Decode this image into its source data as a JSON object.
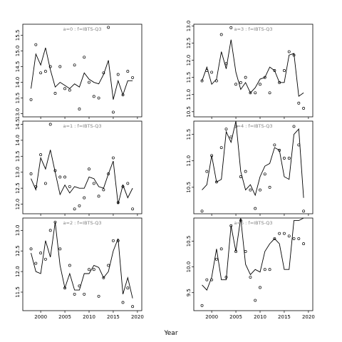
{
  "figure": {
    "xlabel": "Year"
  },
  "chart_data": [
    {
      "type": "line",
      "panel_label": "a=0  :  f=IBTS-Q3",
      "xlim": [
        1996.3,
        2020.9
      ],
      "ylim": [
        12.9,
        15.85
      ],
      "yticks": [
        13.0,
        13.5,
        14.0,
        14.5,
        15.0,
        15.5
      ],
      "xticks": [
        2000,
        2005,
        2010,
        2015,
        2020
      ],
      "show_xticklabels": false,
      "line": {
        "x": [
          1998,
          1999,
          2000,
          2001,
          2002,
          2003,
          2004,
          2005,
          2006,
          2007,
          2008,
          2009,
          2010,
          2011,
          2012,
          2013,
          2014,
          2015,
          2016,
          2017,
          2018,
          2019
        ],
        "y": [
          13.8,
          14.9,
          14.55,
          15.1,
          14.4,
          13.85,
          14.0,
          13.9,
          13.8,
          13.95,
          13.85,
          14.3,
          14.1,
          14.0,
          13.95,
          14.25,
          14.7,
          13.45,
          14.05,
          13.6,
          14.05,
          14.05
        ]
      },
      "points": {
        "x": [
          1998,
          1999,
          2000,
          2001,
          2002,
          2003,
          2004,
          2005,
          2006,
          2007,
          2008,
          2009,
          2010,
          2011,
          2012,
          2013,
          2014,
          2015,
          2016,
          2017,
          2018,
          2019
        ],
        "y": [
          13.45,
          15.2,
          14.3,
          14.35,
          14.5,
          13.65,
          14.5,
          13.8,
          13.75,
          14.55,
          13.15,
          14.8,
          14.0,
          13.55,
          13.5,
          14.3,
          15.75,
          13.05,
          14.25,
          13.6,
          14.35,
          14.15
        ]
      }
    },
    {
      "type": "line",
      "panel_label": "a=3  :  f=IBTS-Q3",
      "xlim": [
        1996.3,
        2020.9
      ],
      "ylim": [
        10.35,
        13.05
      ],
      "yticks": [
        10.5,
        11.0,
        11.5,
        12.0,
        12.5,
        13.0
      ],
      "xticks": [
        2000,
        2005,
        2010,
        2015,
        2020
      ],
      "show_xticklabels": false,
      "line": {
        "x": [
          1998,
          1999,
          2000,
          2001,
          2002,
          2003,
          2004,
          2005,
          2006,
          2007,
          2008,
          2009,
          2010,
          2011,
          2012,
          2013,
          2014,
          2015,
          2016,
          2017,
          2018,
          2019
        ],
        "y": [
          11.4,
          11.8,
          11.3,
          11.45,
          12.25,
          11.75,
          12.6,
          11.65,
          11.15,
          11.35,
          11.05,
          11.2,
          11.45,
          11.5,
          11.8,
          11.7,
          11.35,
          11.35,
          12.15,
          12.2,
          10.95,
          11.05
        ]
      },
      "points": {
        "x": [
          1998,
          1999,
          2000,
          2001,
          2002,
          2003,
          2004,
          2005,
          2006,
          2007,
          2008,
          2009,
          2010,
          2011,
          2012,
          2013,
          2014,
          2015,
          2016,
          2017,
          2018,
          2019
        ],
        "y": [
          11.4,
          11.7,
          11.65,
          11.4,
          12.75,
          11.9,
          12.95,
          11.3,
          11.35,
          11.5,
          11.05,
          11.05,
          11.3,
          11.5,
          11.05,
          11.7,
          11.35,
          11.7,
          12.25,
          12.15,
          10.75,
          10.6
        ]
      }
    },
    {
      "type": "line",
      "panel_label": "a=1  :  f=IBTS-Q3",
      "xlim": [
        1996.3,
        2020.9
      ],
      "ylim": [
        11.7,
        14.6
      ],
      "yticks": [
        12.0,
        12.5,
        13.0,
        13.5,
        14.0,
        14.5
      ],
      "xticks": [
        2000,
        2005,
        2010,
        2015,
        2020
      ],
      "show_xticklabels": false,
      "line": {
        "x": [
          1998,
          1999,
          2000,
          2001,
          2002,
          2003,
          2004,
          2005,
          2006,
          2007,
          2008,
          2009,
          2010,
          2011,
          2012,
          2013,
          2014,
          2015,
          2016,
          2017,
          2018,
          2019
        ],
        "y": [
          12.8,
          12.45,
          13.45,
          13.1,
          13.7,
          13.0,
          12.3,
          12.6,
          12.35,
          12.55,
          12.5,
          12.5,
          12.85,
          12.8,
          12.55,
          12.5,
          12.95,
          13.35,
          12.0,
          12.6,
          12.2,
          12.5
        ]
      },
      "points": {
        "x": [
          1998,
          1999,
          2000,
          2001,
          2002,
          2003,
          2004,
          2005,
          2006,
          2007,
          2008,
          2009,
          2010,
          2011,
          2012,
          2013,
          2014,
          2015,
          2016,
          2017,
          2018,
          2019
        ],
        "y": [
          12.95,
          12.55,
          13.55,
          12.65,
          14.5,
          13.05,
          12.85,
          12.85,
          12.55,
          11.85,
          11.95,
          12.2,
          13.1,
          12.65,
          12.25,
          12.45,
          12.95,
          13.45,
          12.05,
          12.55,
          12.65,
          11.85
        ]
      }
    },
    {
      "type": "line",
      "panel_label": "a=4  :  f=IBTS-Q3",
      "xlim": [
        1996.3,
        2020.9
      ],
      "ylim": [
        10.0,
        11.75
      ],
      "yticks": [
        10.5,
        11.0,
        11.5
      ],
      "xticks": [
        2000,
        2005,
        2010,
        2015,
        2020
      ],
      "show_xticklabels": false,
      "line": {
        "x": [
          1998,
          1999,
          2000,
          2001,
          2002,
          2003,
          2004,
          2005,
          2006,
          2007,
          2008,
          2009,
          2010,
          2011,
          2012,
          2013,
          2014,
          2015,
          2016,
          2017,
          2018,
          2019
        ],
        "y": [
          10.45,
          10.55,
          11.1,
          10.6,
          10.65,
          11.55,
          11.35,
          11.75,
          10.8,
          10.45,
          10.55,
          10.35,
          10.7,
          10.9,
          10.95,
          11.25,
          11.2,
          10.7,
          10.65,
          11.5,
          11.6,
          10.3
        ]
      },
      "points": {
        "x": [
          1998,
          1999,
          2000,
          2001,
          2002,
          2003,
          2004,
          2005,
          2006,
          2007,
          2008,
          2009,
          2010,
          2011,
          2012,
          2013,
          2014,
          2015,
          2016,
          2017,
          2018,
          2019
        ],
        "y": [
          10.05,
          10.8,
          11.1,
          10.6,
          11.25,
          11.6,
          11.45,
          11.65,
          10.7,
          10.8,
          10.45,
          10.1,
          10.45,
          10.75,
          10.5,
          11.3,
          11.2,
          11.05,
          11.05,
          11.65,
          11.3,
          10.05
        ]
      }
    },
    {
      "type": "line",
      "panel_label": "a=2  :  f=IBTS-Q3",
      "xlim": [
        1996.3,
        2020.9
      ],
      "ylim": [
        11.05,
        13.3
      ],
      "yticks": [
        11.5,
        12.0,
        12.5,
        13.0
      ],
      "xticks": [
        2000,
        2005,
        2010,
        2015,
        2020
      ],
      "xticklabels": [
        "2000",
        "2005",
        "2010",
        "2015",
        "2020"
      ],
      "show_xticklabels": true,
      "line": {
        "x": [
          1998,
          1999,
          2000,
          2001,
          2002,
          2003,
          2004,
          2005,
          2006,
          2007,
          2008,
          2009,
          2010,
          2011,
          2012,
          2013,
          2014,
          2015,
          2016,
          2017,
          2018,
          2019
        ],
        "y": [
          12.45,
          12.0,
          11.95,
          12.75,
          12.35,
          13.2,
          12.15,
          11.6,
          11.95,
          11.55,
          11.55,
          11.95,
          11.95,
          12.15,
          12.1,
          11.85,
          12.0,
          12.5,
          12.8,
          11.45,
          11.85,
          11.35
        ]
      },
      "points": {
        "x": [
          1998,
          1999,
          2000,
          2001,
          2002,
          2003,
          2004,
          2005,
          2006,
          2007,
          2008,
          2009,
          2010,
          2011,
          2012,
          2013,
          2014,
          2015,
          2016,
          2017,
          2018,
          2019
        ],
        "y": [
          12.55,
          12.2,
          12.45,
          12.3,
          13.0,
          13.2,
          12.55,
          11.6,
          12.15,
          11.45,
          11.65,
          11.45,
          12.05,
          12.05,
          11.4,
          11.85,
          12.15,
          12.75,
          12.75,
          11.25,
          11.6,
          11.15
        ]
      }
    },
    {
      "type": "line",
      "panel_label": "a=5  :  f=IBTS-Q3",
      "xlim": [
        1996.3,
        2020.9
      ],
      "ylim": [
        9.15,
        10.95
      ],
      "yticks": [
        9.5,
        10.0,
        10.5
      ],
      "xticks": [
        2000,
        2005,
        2010,
        2015,
        2020
      ],
      "xticklabels": [
        "2000",
        "2005",
        "2010",
        "2015",
        "2020"
      ],
      "show_xticklabels": true,
      "line": {
        "x": [
          1998,
          1999,
          2000,
          2001,
          2002,
          2003,
          2004,
          2005,
          2006,
          2007,
          2008,
          2009,
          2010,
          2011,
          2012,
          2013,
          2014,
          2015,
          2016,
          2017,
          2018,
          2019
        ],
        "y": [
          9.65,
          9.55,
          9.8,
          10.35,
          9.75,
          9.75,
          10.8,
          10.3,
          10.95,
          10.05,
          9.85,
          9.95,
          9.9,
          10.3,
          10.45,
          10.55,
          10.45,
          9.95,
          9.95,
          10.9,
          10.9,
          10.95
        ]
      },
      "points": {
        "x": [
          1998,
          1999,
          2000,
          2001,
          2002,
          2003,
          2004,
          2005,
          2006,
          2007,
          2008,
          2009,
          2010,
          2011,
          2012,
          2013,
          2014,
          2015,
          2016,
          2017,
          2018,
          2019
        ],
        "y": [
          9.25,
          9.75,
          9.75,
          10.15,
          10.35,
          9.8,
          10.8,
          10.3,
          10.9,
          10.3,
          9.8,
          9.35,
          9.6,
          9.95,
          9.95,
          10.55,
          10.65,
          10.65,
          10.6,
          10.55,
          10.55,
          10.45
        ]
      }
    }
  ]
}
